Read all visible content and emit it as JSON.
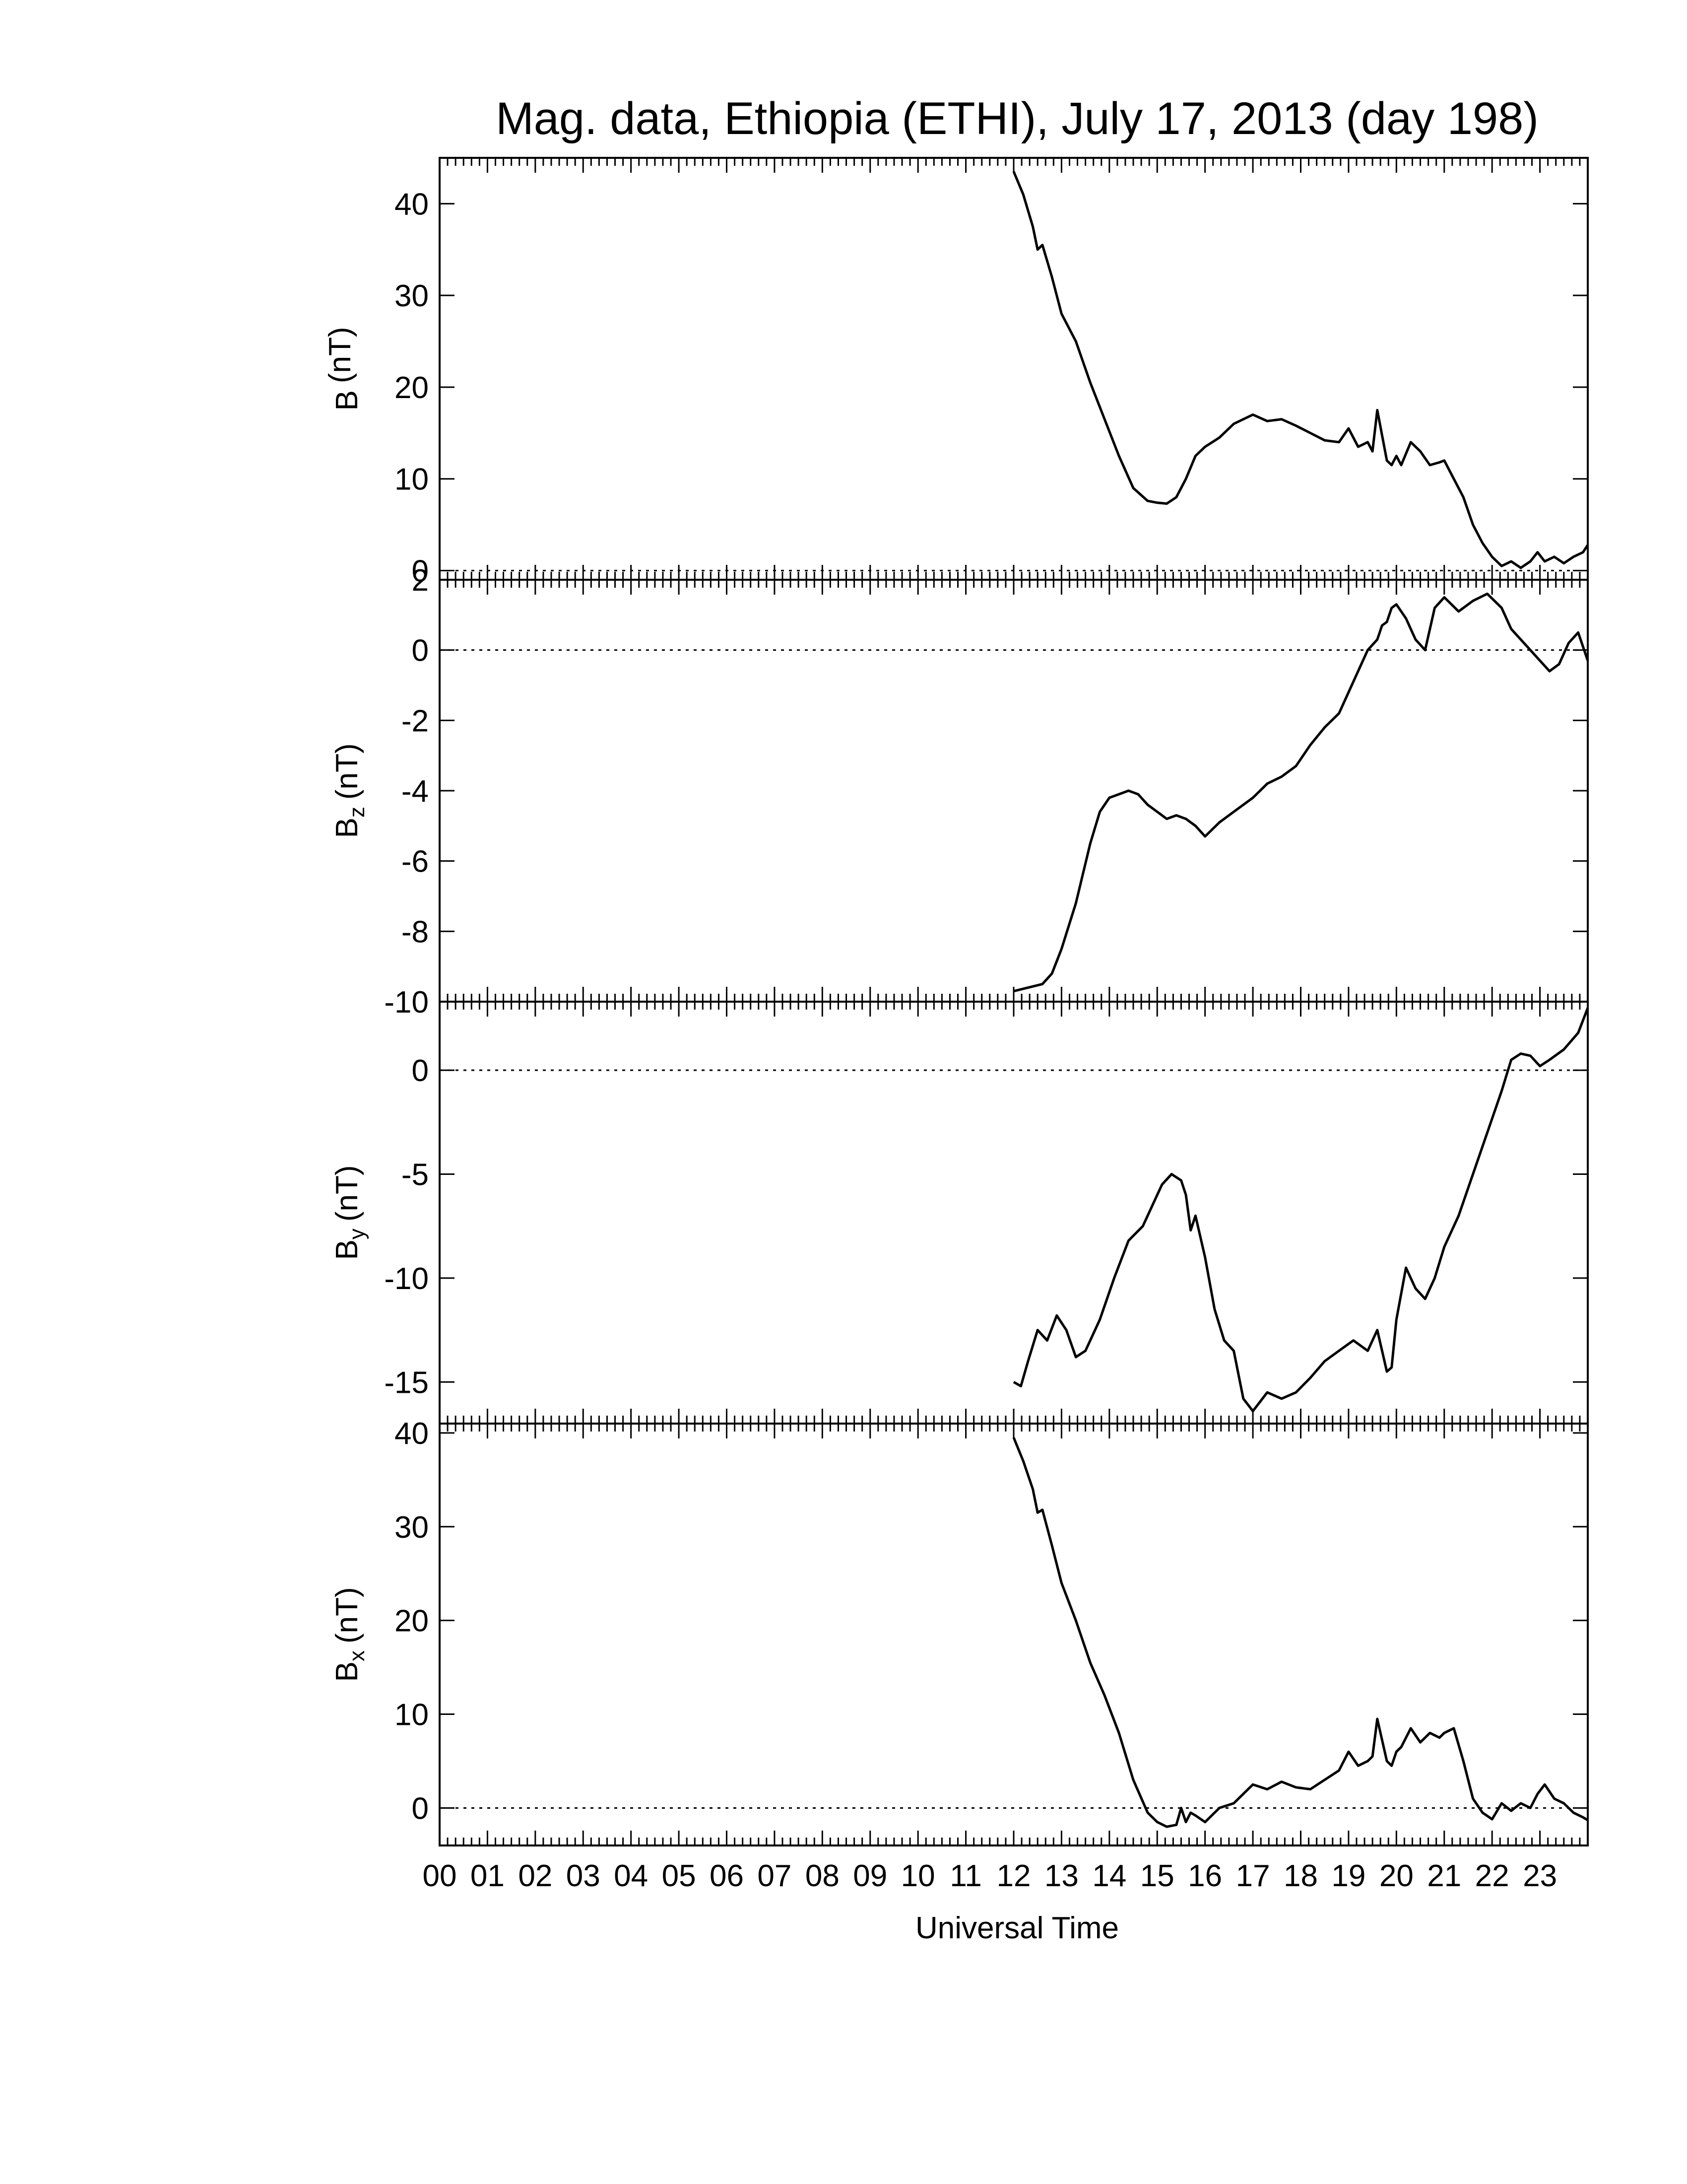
{
  "chart_data": {
    "type": "line",
    "title": "Mag. data, Ethiopia (ETHI), July 17, 2013 (day 198)",
    "xlabel": "Universal Time",
    "x_tick_labels": [
      "00",
      "01",
      "02",
      "03",
      "04",
      "05",
      "06",
      "07",
      "08",
      "09",
      "10",
      "11",
      "12",
      "13",
      "14",
      "15",
      "16",
      "17",
      "18",
      "19",
      "20",
      "21",
      "22",
      "23"
    ],
    "xlim": [
      0,
      24
    ],
    "panels": [
      {
        "ylabel_main": "B",
        "ylabel_sub": "",
        "ylabel_unit": "(nT)",
        "ylim": [
          -1,
          45
        ],
        "yticks": [
          0,
          10,
          20,
          30,
          40
        ],
        "ytick_labels": [
          "0",
          "10",
          "20",
          "30",
          "40"
        ],
        "zero_line": true,
        "series": [
          {
            "x": [
              12.0,
              12.2,
              12.4,
              12.5,
              12.6,
              12.8,
              13.0,
              13.3,
              13.6,
              13.9,
              14.2,
              14.5,
              14.8,
              15.0,
              15.2,
              15.4,
              15.6,
              15.8,
              16.0,
              16.3,
              16.6,
              17.0,
              17.3,
              17.6,
              17.9,
              18.2,
              18.5,
              18.8,
              19.0,
              19.2,
              19.4,
              19.5,
              19.6,
              19.8,
              19.9,
              20.0,
              20.1,
              20.3,
              20.5,
              20.7,
              20.9,
              21.0,
              21.2,
              21.4,
              21.6,
              21.8,
              22.0,
              22.2,
              22.4,
              22.6,
              22.8,
              22.95,
              23.1,
              23.3,
              23.5,
              23.7,
              23.9,
              24.0
            ],
            "y": [
              43.5,
              41,
              37.5,
              35,
              35.5,
              32,
              28,
              25,
              20.5,
              16.5,
              12.5,
              9,
              7.6,
              7.4,
              7.3,
              8,
              10,
              12.5,
              13.5,
              14.5,
              16,
              17,
              16.3,
              16.5,
              15.8,
              15,
              14.2,
              14,
              15.5,
              13.5,
              14,
              13,
              17.5,
              12,
              11.5,
              12.5,
              11.5,
              14,
              13,
              11.5,
              11.8,
              12,
              10,
              8,
              5,
              3,
              1.5,
              0.5,
              1,
              0.3,
              1,
              2,
              1,
              1.5,
              0.8,
              1.5,
              2,
              2.8
            ]
          }
        ]
      },
      {
        "ylabel_main": "B",
        "ylabel_sub": "z",
        "ylabel_unit": "(nT)",
        "ylim": [
          -10,
          2
        ],
        "yticks": [
          -10,
          -8,
          -6,
          -4,
          -2,
          0,
          2
        ],
        "ytick_labels": [
          "-10",
          "-8",
          "-6",
          "-4",
          "-2",
          "0",
          "2"
        ],
        "zero_line": true,
        "series": [
          {
            "x": [
              12.0,
              12.3,
              12.6,
              12.8,
              13.0,
              13.3,
              13.6,
              13.8,
              14.0,
              14.2,
              14.4,
              14.6,
              14.8,
              15.0,
              15.2,
              15.4,
              15.6,
              15.8,
              16.0,
              16.3,
              16.6,
              17.0,
              17.3,
              17.6,
              17.9,
              18.2,
              18.5,
              18.8,
              19.0,
              19.2,
              19.4,
              19.6,
              19.7,
              19.8,
              19.9,
              20.0,
              20.2,
              20.4,
              20.6,
              20.8,
              21.0,
              21.3,
              21.6,
              21.9,
              22.2,
              22.4,
              22.6,
              22.8,
              23.0,
              23.2,
              23.4,
              23.6,
              23.8,
              24.0
            ],
            "y": [
              -9.7,
              -9.6,
              -9.5,
              -9.2,
              -8.5,
              -7.2,
              -5.5,
              -4.6,
              -4.2,
              -4.1,
              -4.0,
              -4.1,
              -4.4,
              -4.6,
              -4.8,
              -4.7,
              -4.8,
              -5.0,
              -5.3,
              -4.9,
              -4.6,
              -4.2,
              -3.8,
              -3.6,
              -3.3,
              -2.7,
              -2.2,
              -1.8,
              -1.2,
              -0.6,
              0.0,
              0.3,
              0.7,
              0.8,
              1.2,
              1.3,
              0.9,
              0.3,
              0.0,
              1.2,
              1.5,
              1.1,
              1.4,
              1.6,
              1.2,
              0.6,
              0.3,
              0.0,
              -0.3,
              -0.6,
              -0.4,
              0.2,
              0.5,
              -0.3
            ]
          }
        ]
      },
      {
        "ylabel_main": "B",
        "ylabel_sub": "y",
        "ylabel_unit": "(nT)",
        "ylim": [
          -17,
          3.3
        ],
        "yticks": [
          -15,
          -10,
          -5,
          0
        ],
        "ytick_labels": [
          "-15",
          "-10",
          "-5",
          "0"
        ],
        "zero_line": true,
        "series": [
          {
            "x": [
              12.0,
              12.15,
              12.3,
              12.5,
              12.7,
              12.9,
              13.1,
              13.3,
              13.5,
              13.8,
              14.1,
              14.4,
              14.7,
              14.9,
              15.1,
              15.3,
              15.5,
              15.6,
              15.7,
              15.8,
              16.0,
              16.2,
              16.4,
              16.6,
              16.8,
              17.0,
              17.3,
              17.6,
              17.9,
              18.2,
              18.5,
              18.8,
              19.1,
              19.4,
              19.6,
              19.8,
              19.9,
              20.0,
              20.2,
              20.4,
              20.6,
              20.8,
              21.0,
              21.3,
              21.6,
              21.9,
              22.2,
              22.4,
              22.6,
              22.8,
              23.0,
              23.2,
              23.5,
              23.8,
              24.0
            ],
            "y": [
              -15,
              -15.2,
              -14,
              -12.5,
              -13,
              -11.8,
              -12.5,
              -13.8,
              -13.5,
              -12,
              -10,
              -8.2,
              -7.5,
              -6.5,
              -5.5,
              -5,
              -5.3,
              -6,
              -7.7,
              -7,
              -9,
              -11.5,
              -13,
              -13.5,
              -15.8,
              -16.4,
              -15.5,
              -15.8,
              -15.5,
              -14.8,
              -14,
              -13.5,
              -13,
              -13.5,
              -12.5,
              -14.5,
              -14.3,
              -12,
              -9.5,
              -10.5,
              -11,
              -10,
              -8.5,
              -7,
              -5,
              -3,
              -1,
              0.5,
              0.8,
              0.7,
              0.2,
              0.5,
              1,
              1.8,
              3.0
            ]
          }
        ]
      },
      {
        "ylabel_main": "B",
        "ylabel_sub": "x",
        "ylabel_unit": "(nT)",
        "ylim": [
          -4,
          41
        ],
        "yticks": [
          0,
          10,
          20,
          30,
          40
        ],
        "ytick_labels": [
          "0",
          "10",
          "20",
          "30",
          "40"
        ],
        "zero_line": true,
        "series": [
          {
            "x": [
              12.0,
              12.2,
              12.4,
              12.5,
              12.6,
              12.8,
              13.0,
              13.3,
              13.6,
              13.9,
              14.2,
              14.5,
              14.8,
              15.0,
              15.2,
              15.4,
              15.5,
              15.6,
              15.7,
              15.8,
              16.0,
              16.3,
              16.6,
              17.0,
              17.3,
              17.6,
              17.9,
              18.2,
              18.5,
              18.8,
              19.0,
              19.2,
              19.4,
              19.5,
              19.6,
              19.8,
              19.9,
              20.0,
              20.1,
              20.3,
              20.5,
              20.7,
              20.9,
              21.0,
              21.2,
              21.4,
              21.6,
              21.8,
              22.0,
              22.2,
              22.4,
              22.6,
              22.8,
              22.95,
              23.1,
              23.3,
              23.5,
              23.7,
              23.9,
              24.0
            ],
            "y": [
              39.5,
              37,
              34,
              31.5,
              31.8,
              28,
              24,
              20,
              15.5,
              12,
              8,
              3,
              -0.5,
              -1.5,
              -2,
              -1.8,
              0,
              -1.5,
              -0.5,
              -0.8,
              -1.5,
              0,
              0.5,
              2.5,
              2,
              2.8,
              2.2,
              2,
              3,
              4,
              6,
              4.5,
              5,
              5.5,
              9.5,
              5,
              4.5,
              6,
              6.5,
              8.5,
              7,
              8,
              7.5,
              8,
              8.5,
              5,
              1,
              -0.5,
              -1.2,
              0.5,
              -0.3,
              0.5,
              0,
              1.5,
              2.5,
              1,
              0.5,
              -0.5,
              -1,
              -1.3
            ]
          }
        ]
      }
    ]
  }
}
